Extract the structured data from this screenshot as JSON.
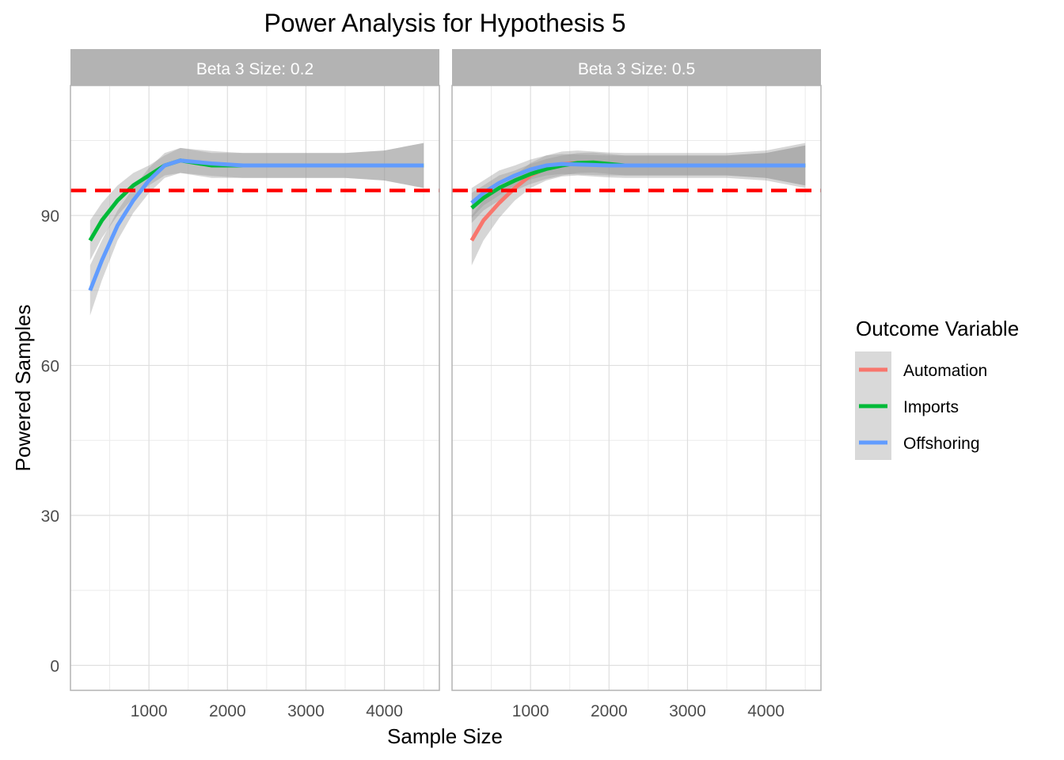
{
  "chart_data": {
    "type": "line",
    "title": "Power Analysis for Hypothesis 5",
    "xlabel": "Sample Size",
    "ylabel": "Powered Samples",
    "xlim": [
      0,
      4700
    ],
    "ylim": [
      -5,
      116
    ],
    "x_ticks": [
      1000,
      2000,
      3000,
      4000
    ],
    "x_tick_labels": [
      "1000",
      "2000",
      "3000",
      "4000"
    ],
    "y_ticks": [
      0,
      30,
      60,
      90
    ],
    "y_tick_labels": [
      "0",
      "30",
      "60",
      "90"
    ],
    "grid": true,
    "reference_line": {
      "y": 95,
      "style": "dashed",
      "color": "#ff0000"
    },
    "legend": {
      "title": "Outcome Variable",
      "position": "right",
      "entries": [
        "Automation",
        "Imports",
        "Offshoring"
      ]
    },
    "series_colors": {
      "Automation": "#f8766d",
      "Imports": "#00ba38",
      "Offshoring": "#619cff"
    },
    "ribbon_color": "#999999",
    "panels": [
      {
        "strip": "Beta 3 Size: 0.2",
        "series": [
          {
            "name": "Imports",
            "x": [
              250,
              400,
              600,
              800,
              1000,
              1200,
              1400,
              1600,
              1800,
              2000,
              2200,
              2500,
              3000,
              3500,
              4000,
              4500
            ],
            "y": [
              85,
              89,
              93,
              96,
              98,
              100,
              101,
              100.5,
              100,
              100,
              100,
              100,
              100,
              100,
              100,
              100
            ],
            "ribbon_half": [
              4,
              3.5,
              3,
              2.5,
              2,
              2,
              2.5,
              2.5,
              2.5,
              2.5,
              2.5,
              2.5,
              2.5,
              2.5,
              3,
              4.5
            ]
          },
          {
            "name": "Offshoring",
            "x": [
              250,
              400,
              600,
              800,
              1000,
              1200,
              1400,
              1600,
              1800,
              2000,
              2200,
              2500,
              3000,
              3500,
              4000,
              4500
            ],
            "y": [
              75,
              81,
              88,
              93,
              97,
              100,
              101,
              100.7,
              100.4,
              100.2,
              100,
              100,
              100,
              100,
              100,
              100
            ],
            "ribbon_half": [
              5,
              4,
              3,
              2.5,
              2.5,
              2.5,
              2.5,
              2.5,
              2.5,
              2.5,
              2.5,
              2.5,
              2.5,
              2.5,
              3,
              4.5
            ]
          }
        ]
      },
      {
        "strip": "Beta 3 Size: 0.5",
        "series": [
          {
            "name": "Automation",
            "x": [
              250,
              400,
              600,
              800,
              1000,
              1200,
              1400,
              1600,
              1800,
              2000,
              2200,
              2500,
              3000,
              3500,
              4000,
              4500
            ],
            "y": [
              85,
              89,
              92.5,
              95.5,
              98,
              99.5,
              100.3,
              100.5,
              100.3,
              100.1,
              100,
              100,
              100,
              100,
              100,
              100
            ],
            "ribbon_half": [
              5,
              4,
              3,
              2.5,
              2.5,
              2.5,
              2.5,
              2.5,
              2.5,
              2.5,
              2.5,
              2.5,
              2.5,
              2.5,
              3,
              4.5
            ]
          },
          {
            "name": "Imports",
            "x": [
              250,
              400,
              600,
              800,
              1000,
              1200,
              1400,
              1600,
              1800,
              2000,
              2200,
              2500,
              3000,
              3500,
              4000,
              4500
            ],
            "y": [
              91.5,
              93.5,
              95.5,
              97,
              98.3,
              99.3,
              100,
              100.5,
              100.6,
              100.3,
              100,
              100,
              100,
              100,
              100,
              100
            ],
            "ribbon_half": [
              3,
              2.5,
              2.5,
              2,
              2,
              2,
              2,
              2,
              2,
              2,
              2,
              2,
              2,
              2,
              2.5,
              4
            ]
          },
          {
            "name": "Offshoring",
            "x": [
              250,
              400,
              600,
              800,
              1000,
              1200,
              1400,
              1600,
              1800,
              2000,
              2200,
              2500,
              3000,
              3500,
              4000,
              4500
            ],
            "y": [
              92.5,
              94.5,
              96.5,
              98,
              99.2,
              100,
              100.3,
              100.2,
              100.1,
              100,
              100,
              100,
              100,
              100,
              100,
              100
            ],
            "ribbon_half": [
              3,
              2.5,
              2.5,
              2,
              2,
              2,
              2,
              2,
              2,
              2,
              2,
              2,
              2,
              2,
              2.5,
              4
            ]
          }
        ]
      }
    ]
  }
}
